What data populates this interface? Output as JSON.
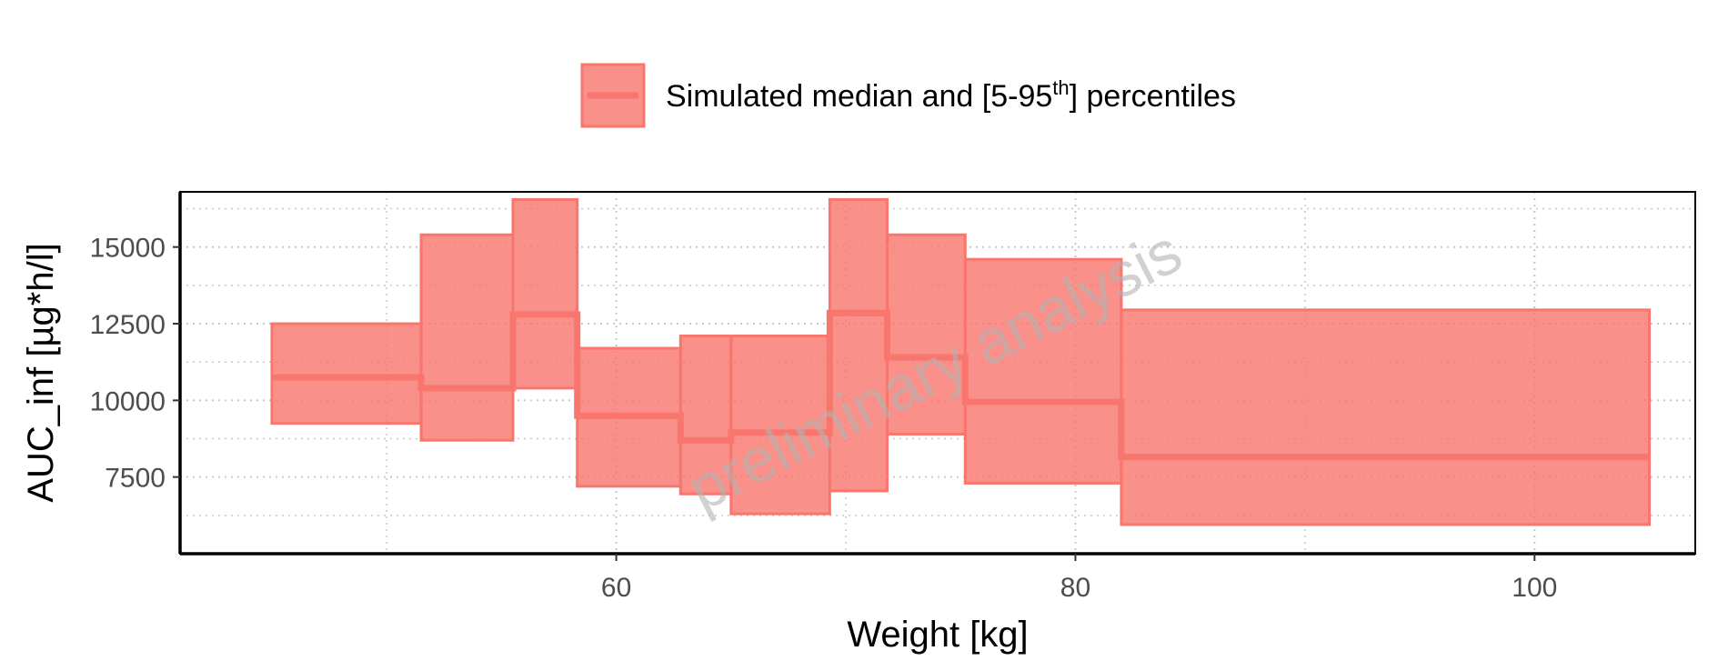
{
  "chart_data": {
    "type": "area",
    "title": "",
    "xlabel": "Weight [kg]",
    "ylabel": "AUC_inf [µg*h/l]",
    "xlim": [
      41,
      107
    ],
    "ylim": [
      5000,
      16800
    ],
    "xticks": [
      60,
      80,
      100
    ],
    "xtick_labels": [
      "60",
      "80",
      "100"
    ],
    "yticks": [
      7500,
      10000,
      12500,
      15000
    ],
    "ytick_labels": [
      "7500",
      "10000",
      "12500",
      "15000"
    ],
    "grid": true,
    "watermark": "preliminary analysis",
    "legend": {
      "position": "top",
      "label_main": "Simulated median and [5-95",
      "label_sup": "th",
      "label_end": "] percentiles"
    },
    "colors": {
      "ribbon_fill": "#F8766D",
      "ribbon_opacity": 0.8,
      "median_line": "#F8766D"
    },
    "series": [
      {
        "bins": [
          {
            "x_start": 45.0,
            "x_end": 51.5,
            "median": 10750,
            "p5": 9250,
            "p95": 12500
          },
          {
            "x_start": 51.5,
            "x_end": 55.5,
            "median": 10400,
            "p5": 8700,
            "p95": 15400
          },
          {
            "x_start": 55.5,
            "x_end": 58.3,
            "median": 12800,
            "p5": 10400,
            "p95": 16550
          },
          {
            "x_start": 58.3,
            "x_end": 62.8,
            "median": 9500,
            "p5": 7200,
            "p95": 11700
          },
          {
            "x_start": 62.8,
            "x_end": 65.0,
            "median": 8700,
            "p5": 6950,
            "p95": 12100
          },
          {
            "x_start": 65.0,
            "x_end": 69.3,
            "median": 8950,
            "p5": 6300,
            "p95": 12100
          },
          {
            "x_start": 69.3,
            "x_end": 71.8,
            "median": 12850,
            "p5": 7050,
            "p95": 16550
          },
          {
            "x_start": 71.8,
            "x_end": 75.2,
            "median": 11400,
            "p5": 8900,
            "p95": 15400
          },
          {
            "x_start": 75.2,
            "x_end": 82.0,
            "median": 9950,
            "p5": 7300,
            "p95": 14600
          },
          {
            "x_start": 82.0,
            "x_end": 105.0,
            "median": 8150,
            "p5": 5950,
            "p95": 12950
          }
        ]
      }
    ]
  }
}
